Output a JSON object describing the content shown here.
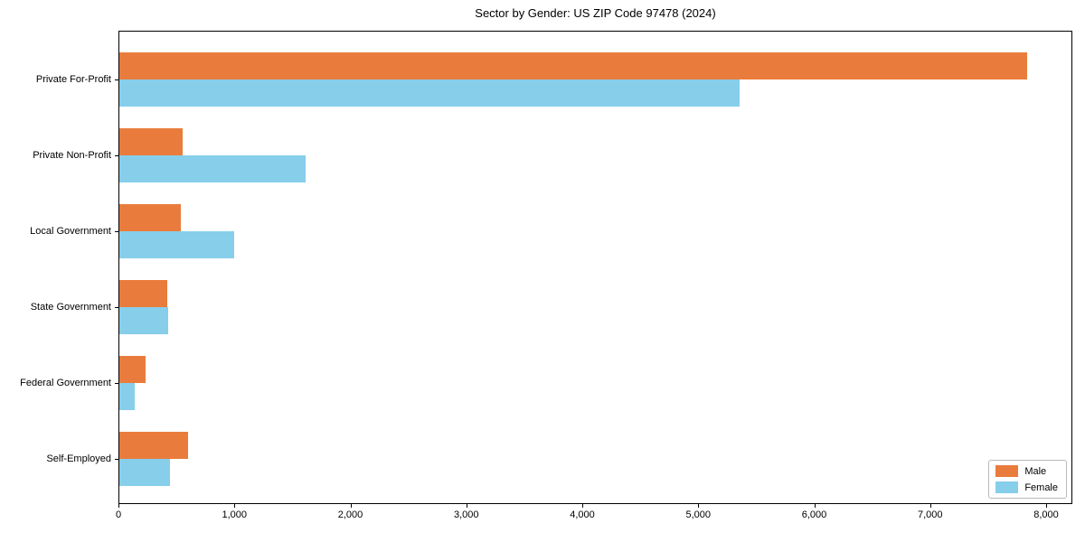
{
  "title": "Sector by Gender: US ZIP Code 97478 (2024)",
  "chart_data": {
    "type": "bar",
    "orientation": "horizontal",
    "title": "Sector by Gender: US ZIP Code 97478 (2024)",
    "categories": [
      "Private For-Profit",
      "Private Non-Profit",
      "Local Government",
      "State Government",
      "Federal Government",
      "Self-Employed"
    ],
    "series": [
      {
        "name": "Male",
        "color": "#E97C3C",
        "values": [
          7830,
          545,
          530,
          410,
          230,
          590
        ]
      },
      {
        "name": "Female",
        "color": "#87CEEB",
        "values": [
          5350,
          1605,
          990,
          420,
          135,
          440
        ]
      }
    ],
    "xlabel": "",
    "ylabel": "",
    "xlim": [
      0,
      8225
    ],
    "xticks": [
      0,
      1000,
      2000,
      3000,
      4000,
      5000,
      6000,
      7000,
      8000
    ],
    "xtick_labels": [
      "0",
      "1,000",
      "2,000",
      "3,000",
      "4,000",
      "5,000",
      "6,000",
      "7,000",
      "8,000"
    ],
    "grid": false,
    "legend": {
      "position": "lower right",
      "entries": [
        "Male",
        "Female"
      ]
    }
  }
}
